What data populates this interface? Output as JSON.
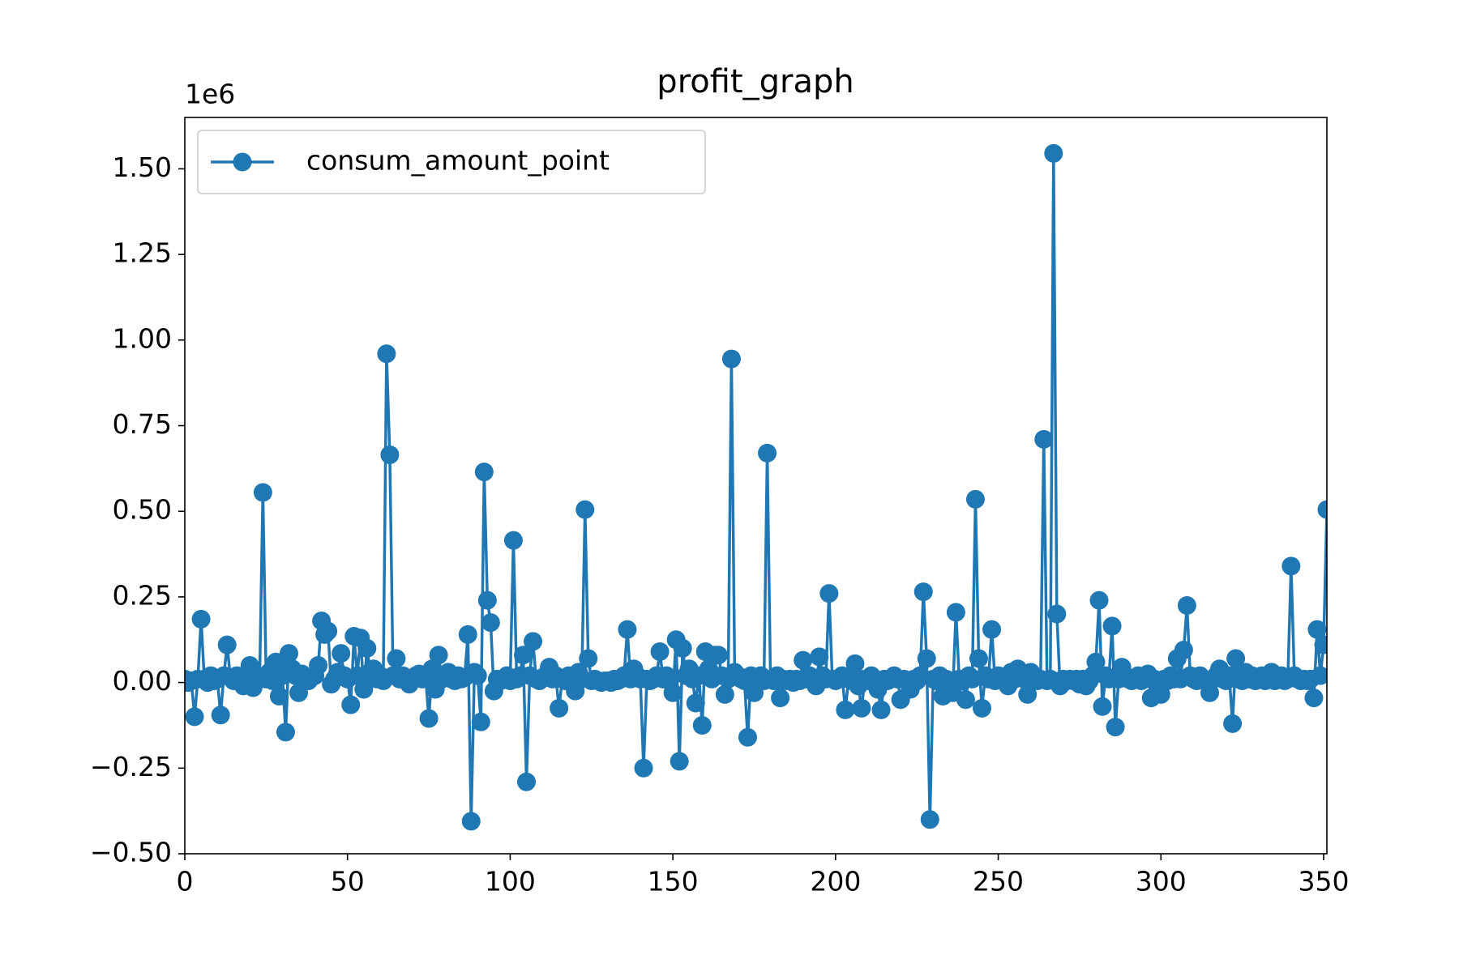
{
  "chart_data": {
    "type": "line",
    "title": "profit_graph",
    "offset_text": "1e6",
    "legend": "upper left",
    "grid": false,
    "xlim": [
      0,
      351
    ],
    "ylim": [
      -0.5,
      1.65
    ],
    "xticks": [
      0,
      50,
      100,
      150,
      200,
      250,
      300,
      350
    ],
    "yticks": [
      {
        "value": -0.5,
        "label": "−0.50"
      },
      {
        "value": -0.25,
        "label": "−0.25"
      },
      {
        "value": 0,
        "label": "0.00"
      },
      {
        "value": 0.25,
        "label": "0.25"
      },
      {
        "value": 0.5,
        "label": "0.50"
      },
      {
        "value": 0.75,
        "label": "0.75"
      },
      {
        "value": 1,
        "label": "1.00"
      },
      {
        "value": 1.25,
        "label": "1.25"
      },
      {
        "value": 1.5,
        "label": "1.50"
      }
    ],
    "x": [
      0,
      1,
      2,
      3,
      4,
      5,
      6,
      7,
      8,
      9,
      10,
      11,
      12,
      13,
      14,
      15,
      16,
      17,
      18,
      19,
      20,
      21,
      22,
      23,
      24,
      25,
      26,
      27,
      28,
      29,
      30,
      31,
      32,
      33,
      34,
      35,
      36,
      37,
      38,
      39,
      40,
      41,
      42,
      43,
      44,
      45,
      46,
      47,
      48,
      49,
      50,
      51,
      52,
      53,
      54,
      55,
      56,
      57,
      58,
      59,
      60,
      61,
      62,
      63,
      64,
      65,
      66,
      67,
      68,
      69,
      70,
      71,
      72,
      73,
      74,
      75,
      76,
      77,
      78,
      79,
      80,
      81,
      82,
      83,
      84,
      85,
      86,
      87,
      88,
      89,
      90,
      91,
      92,
      93,
      94,
      95,
      96,
      97,
      98,
      99,
      100,
      101,
      102,
      103,
      104,
      105,
      106,
      107,
      108,
      109,
      110,
      111,
      112,
      113,
      114,
      115,
      116,
      117,
      118,
      119,
      120,
      121,
      122,
      123,
      124,
      125,
      126,
      127,
      128,
      129,
      130,
      131,
      132,
      133,
      134,
      135,
      136,
      137,
      138,
      139,
      140,
      141,
      142,
      143,
      144,
      145,
      146,
      147,
      148,
      149,
      150,
      151,
      152,
      153,
      154,
      155,
      156,
      157,
      158,
      159,
      160,
      161,
      162,
      163,
      164,
      165,
      166,
      167,
      168,
      169,
      170,
      171,
      172,
      173,
      174,
      175,
      176,
      177,
      178,
      179,
      180,
      181,
      182,
      183,
      184,
      185,
      186,
      187,
      188,
      189,
      190,
      191,
      192,
      193,
      194,
      195,
      196,
      197,
      198,
      199,
      200,
      201,
      202,
      203,
      204,
      205,
      206,
      207,
      208,
      209,
      210,
      211,
      212,
      213,
      214,
      215,
      216,
      217,
      218,
      219,
      220,
      221,
      222,
      223,
      224,
      225,
      226,
      227,
      228,
      229,
      230,
      231,
      232,
      233,
      234,
      235,
      236,
      237,
      238,
      239,
      240,
      241,
      242,
      243,
      244,
      245,
      246,
      247,
      248,
      249,
      250,
      251,
      252,
      253,
      254,
      255,
      256,
      257,
      258,
      259,
      260,
      261,
      262,
      263,
      264,
      265,
      266,
      267,
      268,
      269,
      270,
      271,
      272,
      273,
      274,
      275,
      276,
      277,
      278,
      279,
      280,
      281,
      282,
      283,
      284,
      285,
      286,
      287,
      288,
      289,
      290,
      291,
      292,
      293,
      294,
      295,
      296,
      297,
      298,
      299,
      300,
      301,
      302,
      303,
      304,
      305,
      306,
      307,
      308,
      309,
      310,
      311,
      312,
      313,
      314,
      315,
      316,
      317,
      318,
      319,
      320,
      321,
      322,
      323,
      324,
      325,
      326,
      327,
      328,
      329,
      330,
      331,
      332,
      333,
      334,
      335,
      336,
      337,
      338,
      339,
      340,
      341,
      342,
      343,
      344,
      345,
      346,
      347,
      348,
      349,
      350,
      351
    ],
    "series": [
      {
        "name": "consum_amount_point",
        "color": "#1f77b4",
        "values": [
          0.01,
          0,
          0.005,
          -0.1,
          0.01,
          0.185,
          0.01,
          0,
          0.02,
          0.005,
          0.01,
          -0.095,
          0.02,
          0.11,
          0.015,
          0.005,
          0.02,
          0.01,
          -0.01,
          0.015,
          0.05,
          -0.015,
          0.02,
          0.01,
          0.555,
          0.01,
          0.03,
          0.005,
          0.06,
          -0.04,
          0.02,
          -0.145,
          0.085,
          0.04,
          0.02,
          -0.03,
          0.025,
          0.01,
          0.005,
          0.015,
          0.02,
          0.05,
          0.18,
          0.14,
          0.15,
          -0.005,
          0.01,
          0.03,
          0.085,
          0.02,
          0.01,
          -0.065,
          0.135,
          0.02,
          0.13,
          -0.02,
          0.1,
          0.03,
          0.04,
          0.01,
          0.02,
          0.005,
          0.96,
          0.665,
          0.02,
          0.07,
          0.01,
          0.02,
          0.005,
          -0.005,
          0.01,
          0.02,
          0.025,
          0.01,
          0.015,
          -0.105,
          0.04,
          -0.02,
          0.08,
          0.01,
          0.02,
          0.03,
          0.01,
          0.005,
          0.02,
          0.01,
          0.015,
          0.14,
          -0.405,
          0.03,
          0.02,
          -0.115,
          0.615,
          0.24,
          0.175,
          -0.025,
          0.01,
          0.005,
          0.01,
          0.02,
          0.005,
          0.415,
          0.01,
          0.02,
          0.08,
          -0.29,
          0.02,
          0.12,
          0.01,
          0.005,
          0.015,
          0.02,
          0.045,
          0.01,
          0.02,
          -0.075,
          0.01,
          0.005,
          0.02,
          0.01,
          -0.025,
          0.03,
          0.01,
          0.505,
          0.07,
          0.005,
          0.01,
          0.005,
          0,
          0.005,
          0.005,
          0,
          0.01,
          0.005,
          0.01,
          0.02,
          0.155,
          0.01,
          0.04,
          0.02,
          0.01,
          -0.25,
          0.01,
          0.005,
          0.01,
          0.02,
          0.09,
          0.01,
          0.02,
          0.005,
          -0.03,
          0.125,
          -0.23,
          0.1,
          0.02,
          0.04,
          0.01,
          -0.06,
          0.02,
          -0.125,
          0.09,
          0.04,
          0.01,
          0.08,
          0.08,
          0.02,
          -0.035,
          0.01,
          0.945,
          0.03,
          0.02,
          0.01,
          0.005,
          -0.16,
          0.02,
          -0.03,
          0.01,
          0.02,
          0.005,
          0.67,
          0.01,
          0.005,
          0.02,
          -0.045,
          0.01,
          0.005,
          0.01,
          0,
          0.01,
          0.005,
          0.065,
          0.01,
          0.02,
          0.005,
          -0.01,
          0.075,
          0.02,
          0.01,
          0.26,
          0.01,
          0.005,
          0.01,
          0.02,
          -0.08,
          0.01,
          0.005,
          0.055,
          -0.01,
          -0.075,
          0.01,
          0.005,
          0.02,
          0.01,
          -0.02,
          -0.08,
          0.01,
          0.005,
          0.01,
          0.02,
          0.01,
          -0.05,
          0.01,
          0.005,
          -0.02,
          0.01,
          0.005,
          0.02,
          0.265,
          0.07,
          -0.4,
          0.01,
          0.005,
          0.02,
          -0.04,
          0.01,
          0.005,
          -0.03,
          0.205,
          0.01,
          0.005,
          -0.05,
          0.02,
          0.01,
          0.535,
          0.07,
          -0.075,
          0.02,
          0.01,
          0.155,
          0.005,
          0.02,
          0.01,
          0.005,
          -0.01,
          0.03,
          0.01,
          0.04,
          0.02,
          0.01,
          -0.035,
          0.03,
          0.02,
          0.005,
          0.01,
          0.71,
          0.005,
          0.01,
          1.545,
          0.2,
          -0.01,
          0.01,
          0.005,
          0.01,
          0.005,
          0.01,
          -0.005,
          0.01,
          -0.01,
          0.005,
          0.02,
          0.06,
          0.24,
          -0.07,
          0.02,
          0.01,
          0.165,
          -0.13,
          0.01,
          0.045,
          0.02,
          0.01,
          0.005,
          0.01,
          0.02,
          0.005,
          0.01,
          0.025,
          -0.045,
          0.01,
          0.005,
          -0.035,
          0.01,
          0.005,
          0.02,
          0.01,
          0.07,
          0.01,
          0.095,
          0.225,
          0.02,
          0.01,
          0.005,
          0.02,
          0.01,
          0.005,
          -0.03,
          0.01,
          0.02,
          0.04,
          0.01,
          0.005,
          0.02,
          -0.12,
          0.07,
          0.01,
          0.005,
          0.03,
          0.01,
          0.02,
          0.005,
          0.01,
          0.02,
          0.005,
          0.01,
          0.03,
          0.005,
          0.01,
          0.02,
          0.005,
          0.01,
          0.34,
          0.02,
          0.01,
          0.005,
          0.01,
          0.005,
          0.01,
          -0.045,
          0.155,
          0.02,
          0.11,
          0.505
        ]
      }
    ]
  }
}
